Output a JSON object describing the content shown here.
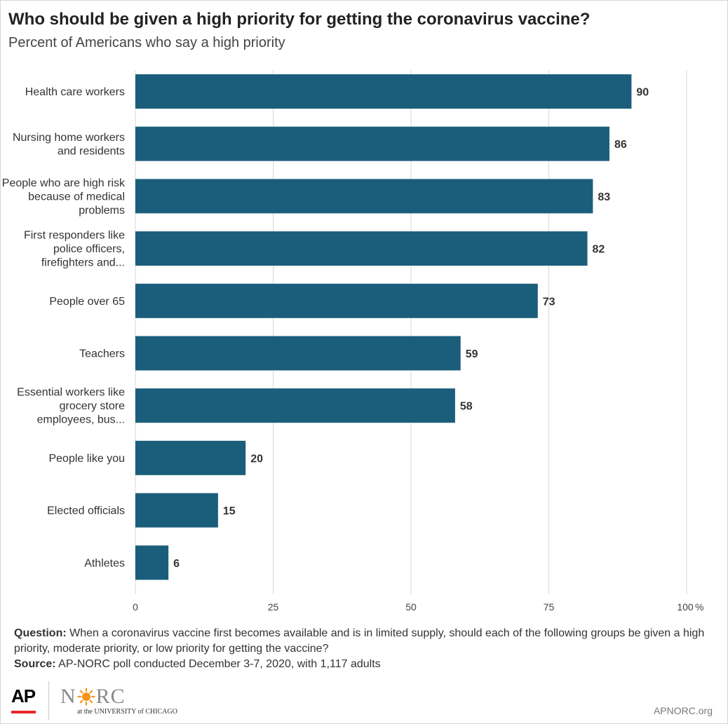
{
  "header": {
    "title": "Who should be given a high priority for getting the coronavirus vaccine?",
    "subtitle": "Percent of Americans who say a high priority"
  },
  "chart_data": {
    "type": "bar",
    "orientation": "horizontal",
    "title": "Who should be given a high priority for getting the coronavirus vaccine?",
    "subtitle": "Percent of Americans who say a high priority",
    "categories": [
      [
        "Health care workers"
      ],
      [
        "Nursing home workers",
        "and residents"
      ],
      [
        "People who are high risk",
        "because of medical",
        "problems"
      ],
      [
        "First responders like",
        "police officers,",
        "firefighters and..."
      ],
      [
        "People over 65"
      ],
      [
        "Teachers"
      ],
      [
        "Essential workers like",
        "grocery store",
        "employees, bus..."
      ],
      [
        "People like you"
      ],
      [
        "Elected officials"
      ],
      [
        "Athletes"
      ]
    ],
    "values": [
      90,
      86,
      83,
      82,
      73,
      59,
      58,
      20,
      15,
      6
    ],
    "xlim": [
      0,
      100
    ],
    "ticks": [
      0,
      25,
      50,
      75,
      100
    ],
    "tick_labels": [
      "0",
      "25",
      "50",
      "75",
      "100"
    ],
    "unit_label": "%",
    "grid": true,
    "bar_color": "#1b5e7b",
    "grid_color": "#d9d9d9"
  },
  "footer": {
    "question_label": "Question:",
    "question_text": " When a coronavirus vaccine first becomes available and is in limited  supply, should each of the following groups be given a high priority, moderate priority, or low priority for getting the vaccine?",
    "source_label": "Source:",
    "source_text": " AP-NORC poll conducted December 3-7, 2020, with 1,117 adults"
  },
  "logos": {
    "ap": "AP",
    "norc_left": "N",
    "norc_right": "RC",
    "norc_tagline": "at the UNIVERSITY of CHICAGO",
    "norc_sun_icon": "sun-icon",
    "norc_color": "#f7941d"
  },
  "site_url": "APNORC.org"
}
